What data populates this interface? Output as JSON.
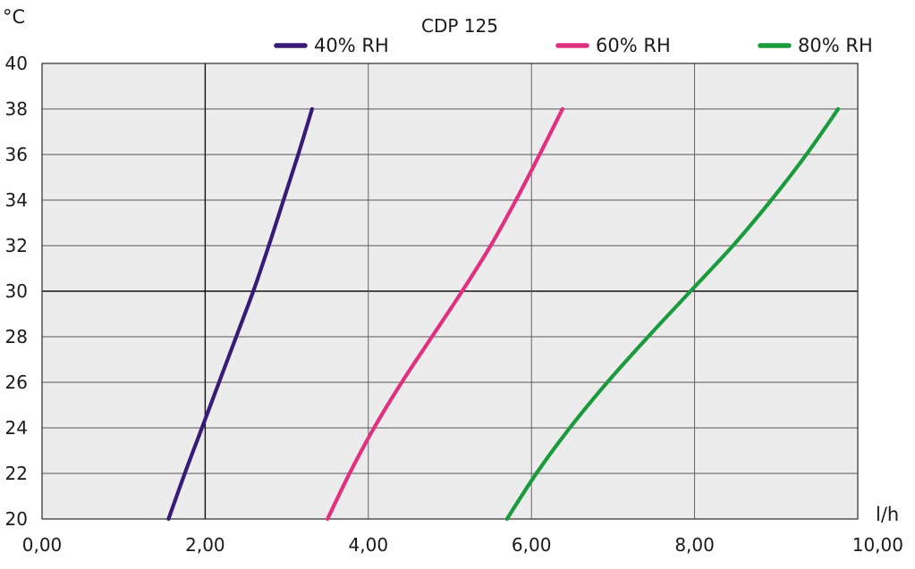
{
  "chart_data": {
    "type": "line",
    "title": "CDP 125",
    "xlabel": "l/h",
    "ylabel": "°C",
    "xlim": [
      0,
      10
    ],
    "ylim": [
      20,
      40
    ],
    "x_ticks": [
      0,
      2,
      4,
      6,
      8,
      10
    ],
    "x_tick_labels": [
      "0,00",
      "2,00",
      "4,00",
      "6,00",
      "8,00",
      "10,00"
    ],
    "y_ticks": [
      20,
      22,
      24,
      26,
      28,
      30,
      32,
      34,
      36,
      38,
      40
    ],
    "y_tick_labels": [
      "20",
      "22",
      "24",
      "26",
      "28",
      "30",
      "32",
      "34",
      "36",
      "38",
      "40"
    ],
    "grid": true,
    "emphasized_gridlines": {
      "x": [
        2
      ],
      "y": [
        30
      ]
    },
    "legend_position": "top",
    "background_color": "#ececec",
    "series": [
      {
        "name": "40% RH",
        "color": "#3a1a78",
        "points": [
          [
            1.55,
            20
          ],
          [
            1.75,
            22
          ],
          [
            1.96,
            24
          ],
          [
            2.17,
            26
          ],
          [
            2.38,
            28
          ],
          [
            2.59,
            30
          ],
          [
            2.78,
            32
          ],
          [
            2.96,
            34
          ],
          [
            3.14,
            36
          ],
          [
            3.31,
            38
          ]
        ]
      },
      {
        "name": "60% RH",
        "color": "#e0307f",
        "points": [
          [
            3.5,
            20
          ],
          [
            3.77,
            22
          ],
          [
            4.07,
            24
          ],
          [
            4.41,
            26
          ],
          [
            4.78,
            28
          ],
          [
            5.15,
            30
          ],
          [
            5.5,
            32
          ],
          [
            5.81,
            34
          ],
          [
            6.1,
            36
          ],
          [
            6.38,
            38
          ]
        ]
      },
      {
        "name": "80% RH",
        "color": "#1c9a3e",
        "points": [
          [
            5.7,
            20
          ],
          [
            6.06,
            22
          ],
          [
            6.47,
            24
          ],
          [
            6.93,
            26
          ],
          [
            7.43,
            28
          ],
          [
            7.95,
            30
          ],
          [
            8.47,
            32
          ],
          [
            8.94,
            34
          ],
          [
            9.37,
            36
          ],
          [
            9.76,
            38
          ]
        ]
      }
    ]
  }
}
